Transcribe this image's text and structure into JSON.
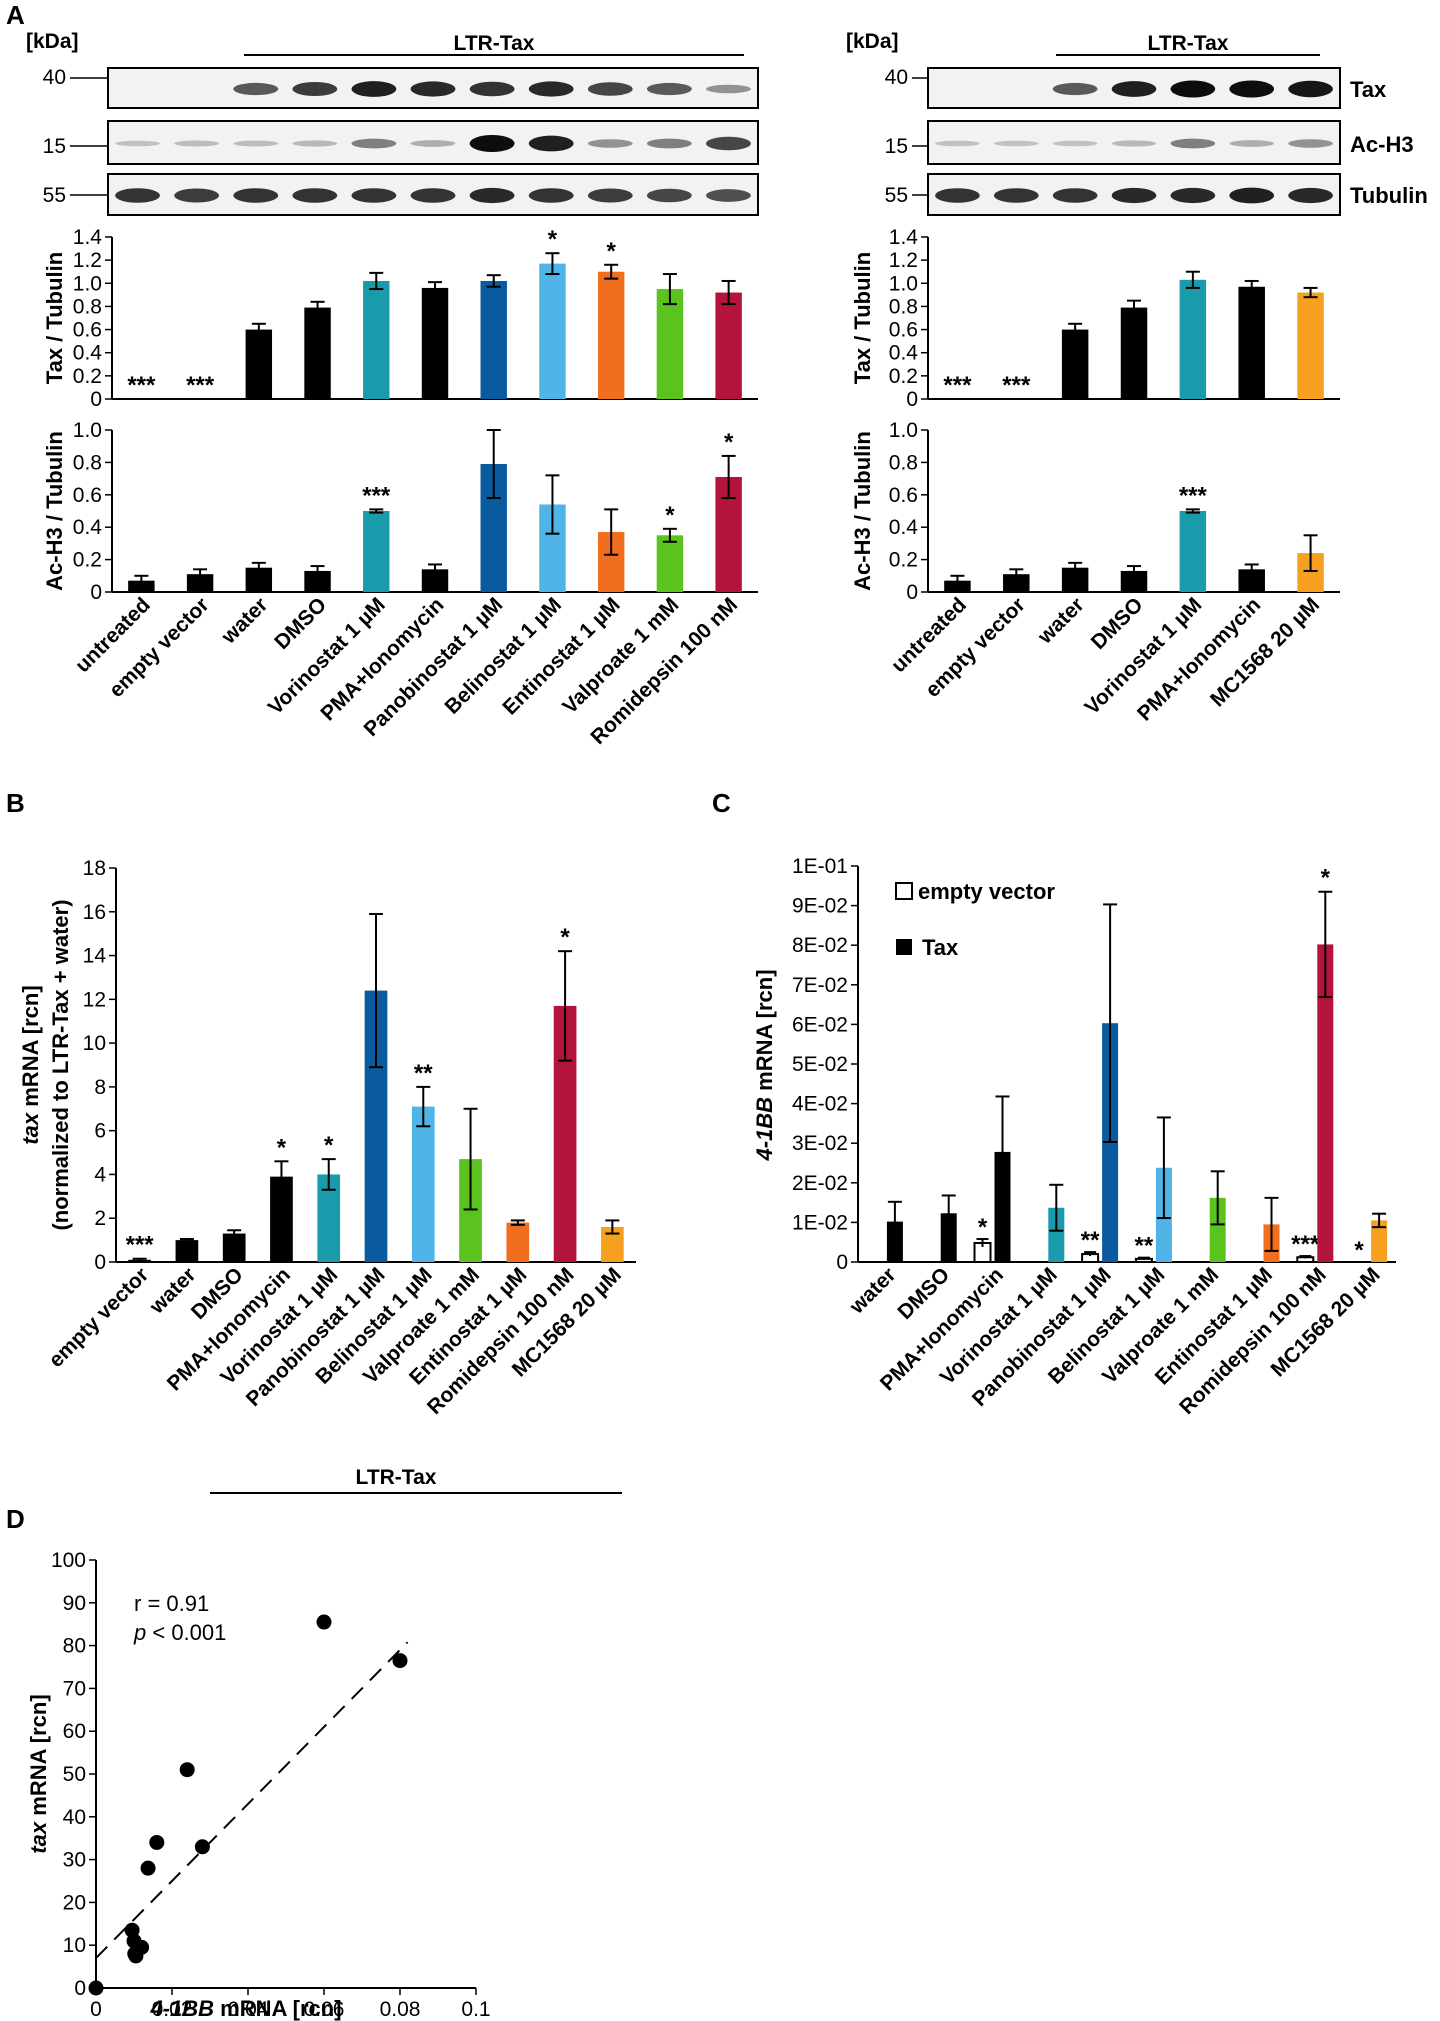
{
  "colors": {
    "black": "#000000",
    "teal": "#1a9bab",
    "darkblue": "#0a5aa0",
    "lightblue": "#50b4e6",
    "orange": "#f06e1e",
    "green": "#5ac31e",
    "crimson": "#b4143c",
    "amber": "#f5a01e",
    "white": "#ffffff"
  },
  "panel_letters": [
    "A",
    "B",
    "C",
    "D"
  ],
  "blots": {
    "left": {
      "kda_label": "[kDa]",
      "group_label": "LTR-Tax",
      "markers": [
        "40",
        "15",
        "55"
      ],
      "lanes": 11,
      "rows": [
        {
          "label": "Tax",
          "intensity": [
            0,
            0,
            0.6,
            0.75,
            0.9,
            0.85,
            0.8,
            0.85,
            0.7,
            0.6,
            0.3
          ]
        },
        {
          "label": "Ac-H3",
          "intensity": [
            0.05,
            0.08,
            0.08,
            0.1,
            0.4,
            0.15,
            1.0,
            0.9,
            0.3,
            0.4,
            0.7
          ]
        },
        {
          "label": "Tubulin",
          "intensity": [
            0.8,
            0.75,
            0.8,
            0.8,
            0.8,
            0.8,
            0.85,
            0.8,
            0.75,
            0.7,
            0.65
          ]
        }
      ]
    },
    "right": {
      "kda_label": "[kDa]",
      "group_label": "LTR-Tax",
      "markers": [
        "40",
        "15",
        "55"
      ],
      "lanes": 7,
      "row_labels": [
        "Tax",
        "Ac-H3",
        "Tubulin"
      ],
      "rows": [
        {
          "label": "Tax",
          "intensity": [
            0,
            0,
            0.6,
            0.9,
            1.0,
            1.0,
            0.95
          ]
        },
        {
          "label": "Ac-H3",
          "intensity": [
            0.05,
            0.05,
            0.05,
            0.1,
            0.4,
            0.15,
            0.3
          ]
        },
        {
          "label": "Tubulin",
          "intensity": [
            0.8,
            0.8,
            0.8,
            0.85,
            0.85,
            0.9,
            0.85
          ]
        }
      ]
    }
  },
  "chart_data": [
    {
      "id": "A-left-tax",
      "type": "bar",
      "ylabel": "Tax / Tubulin",
      "ylim": [
        0,
        1.4
      ],
      "yticks": [
        "0",
        "0.2",
        "0.4",
        "0.6",
        "0.8",
        "1.0",
        "1.2",
        "1.4"
      ],
      "categories": [
        "untreated",
        "empty vector",
        "water",
        "DMSO",
        "Vorinostat 1 µM",
        "PMA+Ionomycin",
        "Panobinostat 1 µM",
        "Belinostat 1 µM",
        "Entinostat 1 µM",
        "Valproate 1 mM",
        "Romidepsin 100 nM"
      ],
      "values": [
        0,
        0,
        0.6,
        0.79,
        1.02,
        0.96,
        1.02,
        1.17,
        1.1,
        0.95,
        0.92
      ],
      "errors": [
        0,
        0,
        0.05,
        0.05,
        0.07,
        0.05,
        0.05,
        0.09,
        0.06,
        0.13,
        0.1
      ],
      "colors": [
        "black",
        "black",
        "black",
        "black",
        "teal",
        "black",
        "darkblue",
        "lightblue",
        "orange",
        "green",
        "crimson"
      ],
      "significance": [
        "***",
        "***",
        "",
        "",
        "",
        "",
        "",
        "*",
        "*",
        "",
        ""
      ]
    },
    {
      "id": "A-left-ach3",
      "type": "bar",
      "ylabel": "Ac-H3 / Tubulin",
      "ylim": [
        0,
        1.0
      ],
      "yticks": [
        "0",
        "0.2",
        "0.4",
        "0.6",
        "0.8",
        "1.0"
      ],
      "categories": [
        "untreated",
        "empty vector",
        "water",
        "DMSO",
        "Vorinostat 1 µM",
        "PMA+Ionomycin",
        "Panobinostat 1 µM",
        "Belinostat 1 µM",
        "Entinostat 1 µM",
        "Valproate 1 mM",
        "Romidepsin 100 nM"
      ],
      "values": [
        0.07,
        0.11,
        0.15,
        0.13,
        0.5,
        0.14,
        0.79,
        0.54,
        0.37,
        0.35,
        0.71
      ],
      "errors": [
        0.03,
        0.03,
        0.03,
        0.03,
        0.01,
        0.03,
        0.21,
        0.18,
        0.14,
        0.04,
        0.13
      ],
      "colors": [
        "black",
        "black",
        "black",
        "black",
        "teal",
        "black",
        "darkblue",
        "lightblue",
        "orange",
        "green",
        "crimson"
      ],
      "significance": [
        "",
        "",
        "",
        "",
        "***",
        "",
        "",
        "",
        "",
        "*",
        "*"
      ]
    },
    {
      "id": "A-right-tax",
      "type": "bar",
      "ylabel": "Tax / Tubulin",
      "ylim": [
        0,
        1.4
      ],
      "yticks": [
        "0",
        "0.2",
        "0.4",
        "0.6",
        "0.8",
        "1.0",
        "1.2",
        "1.4"
      ],
      "categories": [
        "untreated",
        "empty vector",
        "water",
        "DMSO",
        "Vorinostat 1 µM",
        "PMA+Ionomycin",
        "MC1568 20 µM"
      ],
      "values": [
        0,
        0,
        0.6,
        0.79,
        1.03,
        0.97,
        0.92
      ],
      "errors": [
        0,
        0,
        0.05,
        0.06,
        0.07,
        0.05,
        0.04
      ],
      "colors": [
        "black",
        "black",
        "black",
        "black",
        "teal",
        "black",
        "amber"
      ],
      "significance": [
        "***",
        "***",
        "",
        "",
        "",
        "",
        ""
      ]
    },
    {
      "id": "A-right-ach3",
      "type": "bar",
      "ylabel": "Ac-H3 / Tubulin",
      "ylim": [
        0,
        1.0
      ],
      "yticks": [
        "0",
        "0.2",
        "0.4",
        "0.6",
        "0.8",
        "1.0"
      ],
      "categories": [
        "untreated",
        "empty vector",
        "water",
        "DMSO",
        "Vorinostat 1 µM",
        "PMA+Ionomycin",
        "MC1568 20 µM"
      ],
      "values": [
        0.07,
        0.11,
        0.15,
        0.13,
        0.5,
        0.14,
        0.24
      ],
      "errors": [
        0.03,
        0.03,
        0.03,
        0.03,
        0.01,
        0.03,
        0.11
      ],
      "colors": [
        "black",
        "black",
        "black",
        "black",
        "teal",
        "black",
        "amber"
      ],
      "significance": [
        "",
        "",
        "",
        "",
        "***",
        "",
        ""
      ]
    },
    {
      "id": "B",
      "type": "bar",
      "ylabel_line1": "mRNA [rcn]",
      "ylabel_italic": "tax",
      "ylabel_line2": "(normalized to LTR-Tax + water)",
      "ylim": [
        0,
        18
      ],
      "yticks": [
        "0",
        "2",
        "4",
        "6",
        "8",
        "10",
        "12",
        "14",
        "16",
        "18"
      ],
      "categories": [
        "empty vector",
        "water",
        "DMSO",
        "PMA+Ionomycin",
        "Vorinostat 1 µM",
        "Panobinostat 1 µM",
        "Belinostat 1 µM",
        "Valproate 1 mM",
        "Entinostat 1 µM",
        "Romidepsin 100 nM",
        "MC1568 20 µM"
      ],
      "values": [
        0.1,
        1.0,
        1.3,
        3.9,
        4.0,
        12.4,
        7.1,
        4.7,
        1.8,
        11.7,
        1.6
      ],
      "errors": [
        0.05,
        0.05,
        0.15,
        0.7,
        0.7,
        3.5,
        0.9,
        2.3,
        0.1,
        2.5,
        0.3
      ],
      "colors": [
        "black",
        "black",
        "black",
        "black",
        "teal",
        "darkblue",
        "lightblue",
        "green",
        "orange",
        "crimson",
        "amber"
      ],
      "significance": [
        "***",
        "",
        "",
        "*",
        "*",
        "",
        "**",
        "",
        "",
        "*",
        ""
      ],
      "group_label": "LTR-Tax"
    },
    {
      "id": "C",
      "type": "bar",
      "ylabel_italic": "4-1BB",
      "ylabel_rest": " mRNA [rcn]",
      "ylim": [
        0,
        0.1
      ],
      "yticks": [
        "0",
        "1E-02",
        "2E-02",
        "3E-02",
        "4E-02",
        "5E-02",
        "6E-02",
        "7E-02",
        "8E-02",
        "9E-02",
        "1E-01"
      ],
      "categories": [
        "water",
        "DMSO",
        "PMA+Ionomycin",
        "Vorinostat 1 µM",
        "Panobinostat 1 µM",
        "Belinostat 1 µM",
        "Valproate 1 mM",
        "Entinostat 1 µM",
        "Romidepsin 100 nM",
        "MC1568 20 µM"
      ],
      "legend": [
        "empty vector",
        "Tax"
      ],
      "series": [
        {
          "name": "empty vector",
          "values": [
            0,
            0,
            0.0048,
            0,
            0.002,
            0.0008,
            0,
            0,
            0.0012,
            0
          ],
          "errors": [
            0,
            0,
            0.001,
            0,
            0.0005,
            0.0003,
            0,
            0,
            0.0003,
            0
          ],
          "significance": [
            "",
            "",
            "*",
            "",
            "**",
            "**",
            "",
            "",
            "***",
            "*"
          ]
        },
        {
          "name": "Tax",
          "values": [
            0.0102,
            0.0123,
            0.0278,
            0.0137,
            0.0603,
            0.0238,
            0.0162,
            0.0095,
            0.0802,
            0.0105
          ],
          "errors": [
            0.005,
            0.0045,
            0.014,
            0.0058,
            0.03,
            0.0127,
            0.0067,
            0.0067,
            0.0133,
            0.0017
          ],
          "colors": [
            "black",
            "black",
            "black",
            "teal",
            "darkblue",
            "lightblue",
            "green",
            "orange",
            "crimson",
            "amber"
          ],
          "significance": [
            "",
            "",
            "",
            "",
            "",
            "",
            "",
            "",
            "*",
            ""
          ]
        }
      ]
    },
    {
      "id": "D",
      "type": "scatter",
      "xlabel_italic": "4-1BB",
      "xlabel_rest": " mRNA [rcn]",
      "ylabel_italic": "tax",
      "ylabel_rest": " mRNA [rcn]",
      "xlim": [
        0,
        0.1
      ],
      "ylim": [
        0,
        100
      ],
      "xticks": [
        "0",
        "0.02",
        "0.04",
        "0.06",
        "0.08",
        "0.1"
      ],
      "yticks": [
        "0",
        "10",
        "20",
        "30",
        "40",
        "50",
        "60",
        "70",
        "80",
        "90",
        "100"
      ],
      "points": [
        {
          "x": 0,
          "y": 0
        },
        {
          "x": 0.0095,
          "y": 13.5
        },
        {
          "x": 0.01,
          "y": 11
        },
        {
          "x": 0.0102,
          "y": 8
        },
        {
          "x": 0.0105,
          "y": 7.5
        },
        {
          "x": 0.012,
          "y": 9.5
        },
        {
          "x": 0.0137,
          "y": 28
        },
        {
          "x": 0.016,
          "y": 34
        },
        {
          "x": 0.024,
          "y": 51
        },
        {
          "x": 0.028,
          "y": 33
        },
        {
          "x": 0.06,
          "y": 85.5
        },
        {
          "x": 0.08,
          "y": 76.5
        }
      ],
      "fit": {
        "slope": 900,
        "intercept": 7
      },
      "r_text": "r = 0.91",
      "p_italic": "p",
      "p_rest": " < 0.001"
    }
  ]
}
